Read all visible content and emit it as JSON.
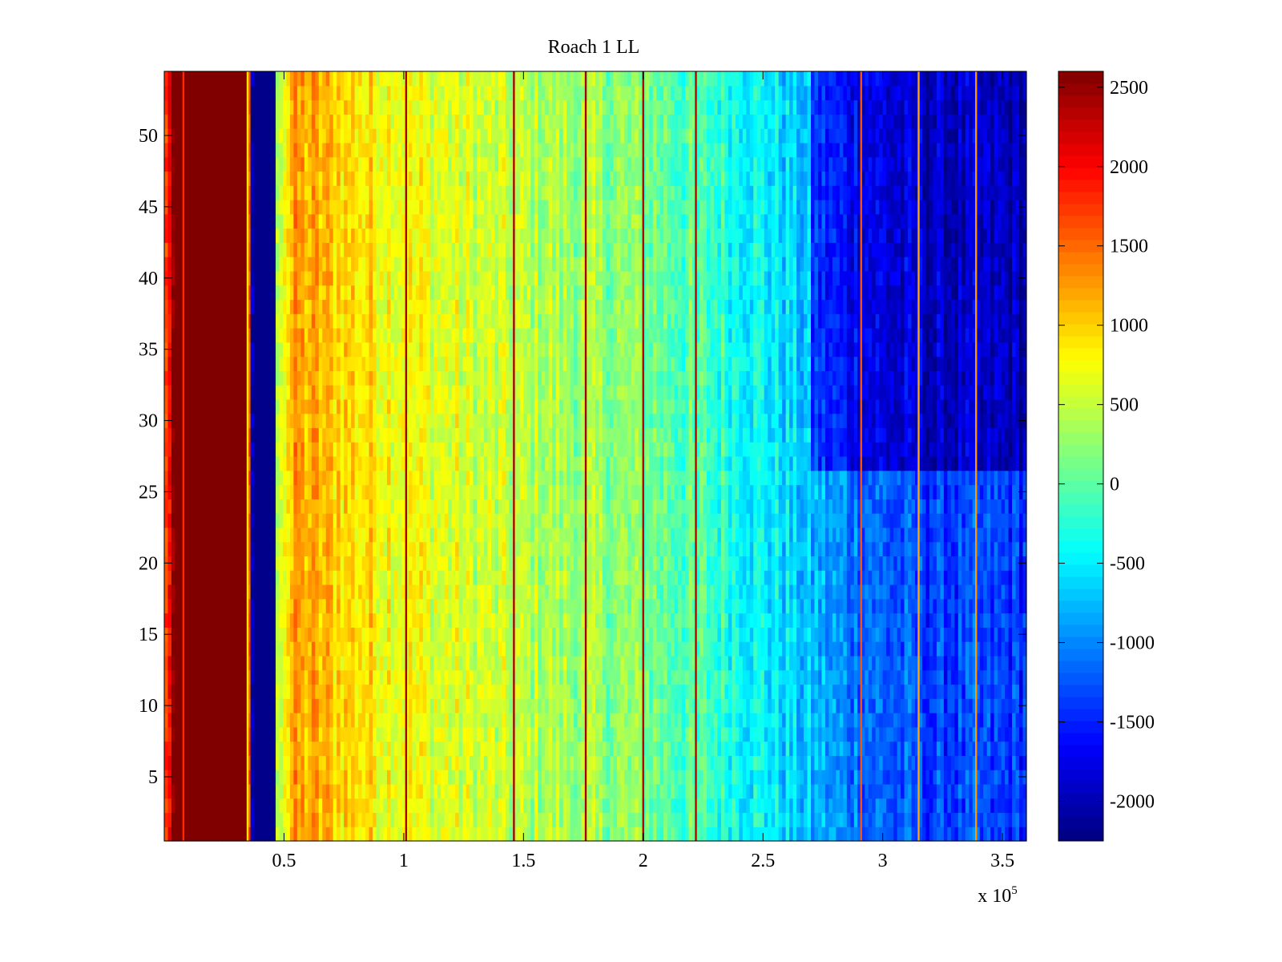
{
  "chart_data": {
    "type": "heatmap",
    "title": "Roach 1 LL",
    "xlabel": "",
    "ylabel": "",
    "x_exponent_label": "x 10",
    "x_exponent_power": "5",
    "xlim": [
      0,
      360000
    ],
    "ylim": [
      0.5,
      54.5
    ],
    "x_ticks": [
      {
        "value": 50000,
        "label": "0.5"
      },
      {
        "value": 100000,
        "label": "1"
      },
      {
        "value": 150000,
        "label": "1.5"
      },
      {
        "value": 200000,
        "label": "2"
      },
      {
        "value": 250000,
        "label": "2.5"
      },
      {
        "value": 300000,
        "label": "3"
      },
      {
        "value": 350000,
        "label": "3.5"
      }
    ],
    "y_ticks": [
      {
        "value": 5,
        "label": "5"
      },
      {
        "value": 10,
        "label": "10"
      },
      {
        "value": 15,
        "label": "15"
      },
      {
        "value": 20,
        "label": "20"
      },
      {
        "value": 25,
        "label": "25"
      },
      {
        "value": 30,
        "label": "30"
      },
      {
        "value": 35,
        "label": "35"
      },
      {
        "value": 40,
        "label": "40"
      },
      {
        "value": 45,
        "label": "45"
      },
      {
        "value": 50,
        "label": "50"
      }
    ],
    "rows": 54,
    "colormap": "jet",
    "clim": [
      -2250,
      2600
    ],
    "colorbar_ticks": [
      {
        "value": 2500,
        "label": "2500"
      },
      {
        "value": 2000,
        "label": "2000"
      },
      {
        "value": 1500,
        "label": "1500"
      },
      {
        "value": 1000,
        "label": "1000"
      },
      {
        "value": 500,
        "label": "500"
      },
      {
        "value": 0,
        "label": "0"
      },
      {
        "value": -500,
        "label": "-500"
      },
      {
        "value": -1000,
        "label": "-1000"
      },
      {
        "value": -1500,
        "label": "-1500"
      },
      {
        "value": -2000,
        "label": "-2000"
      }
    ],
    "column_profile": [
      {
        "x": 0,
        "value": 1400
      },
      {
        "x": 4000,
        "value": 2600
      },
      {
        "x": 35000,
        "value": 2600
      },
      {
        "x": 36000,
        "value": -1000
      },
      {
        "x": 37000,
        "value": -2200
      },
      {
        "x": 46000,
        "value": -2200
      },
      {
        "x": 47000,
        "value": 600
      },
      {
        "x": 55000,
        "value": 1200
      },
      {
        "x": 70000,
        "value": 1050
      },
      {
        "x": 90000,
        "value": 850
      },
      {
        "x": 120000,
        "value": 600
      },
      {
        "x": 150000,
        "value": 420
      },
      {
        "x": 180000,
        "value": 280
      },
      {
        "x": 200000,
        "value": 150
      },
      {
        "x": 220000,
        "value": -50
      },
      {
        "x": 240000,
        "value": -300
      },
      {
        "x": 260000,
        "value": -600
      },
      {
        "x": 280000,
        "value": -950
      },
      {
        "x": 300000,
        "value": -1200
      },
      {
        "x": 320000,
        "value": -1350
      },
      {
        "x": 360000,
        "value": -1400
      }
    ],
    "high_rows_dark_region": {
      "x_start": 270000,
      "row_start": 27,
      "offset": -600
    },
    "stripe_lines": [
      {
        "x": 8000,
        "value": 1800
      },
      {
        "x": 34800,
        "value": 900
      },
      {
        "x": 101000,
        "value": 2400
      },
      {
        "x": 146000,
        "value": 2400
      },
      {
        "x": 176000,
        "value": 2400
      },
      {
        "x": 200000,
        "value": 2300
      },
      {
        "x": 222000,
        "value": 2300
      },
      {
        "x": 291000,
        "value": 1600
      },
      {
        "x": 315000,
        "value": 1200
      },
      {
        "x": 339000,
        "value": 1300
      }
    ]
  }
}
